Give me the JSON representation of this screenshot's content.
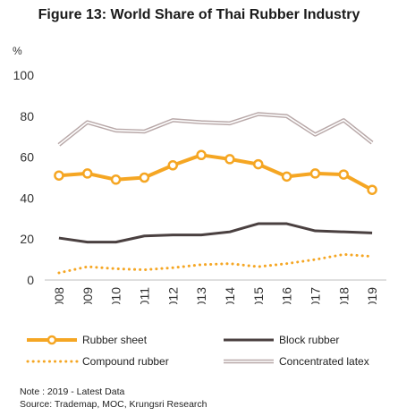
{
  "chart_data": {
    "type": "line",
    "title": "Figure 13: World Share of Thai Rubber Industry",
    "ylabel": "%",
    "categories": [
      "2008",
      "2009",
      "2010",
      "2011",
      "2012",
      "2013",
      "2014",
      "2015",
      "2016",
      "2017",
      "2018",
      "2019"
    ],
    "ylim": [
      0,
      100
    ],
    "yticks": [
      0,
      20,
      40,
      60,
      80,
      100
    ],
    "grid": false,
    "legend_position": "bottom",
    "series": [
      {
        "name": "Rubber sheet",
        "color": "#F5A623",
        "style": "solid-marker",
        "values": [
          51,
          52,
          49,
          50,
          56,
          61,
          59,
          56.5,
          50.5,
          52,
          51.5,
          44
        ]
      },
      {
        "name": "Block rubber",
        "color": "#4A4040",
        "style": "solid",
        "values": [
          20.5,
          18.5,
          18.5,
          21.5,
          22,
          22,
          23.5,
          27.5,
          27.5,
          24,
          23.5,
          23
        ]
      },
      {
        "name": "Compound rubber",
        "color": "#F5A623",
        "style": "dotted",
        "values": [
          3.5,
          6.5,
          5.5,
          5,
          6,
          7.5,
          8,
          6.5,
          8,
          10,
          12.5,
          11.5
        ]
      },
      {
        "name": "Concentrated latex",
        "color": "#B8A8A8",
        "style": "double",
        "values": [
          66,
          77,
          73,
          72.5,
          78,
          77,
          76.5,
          81,
          80,
          71,
          78,
          67
        ]
      }
    ]
  },
  "notes": {
    "note": "Note : 2019 - Latest Data",
    "source": "Source: Trademap, MOC, Krungsri Research"
  }
}
